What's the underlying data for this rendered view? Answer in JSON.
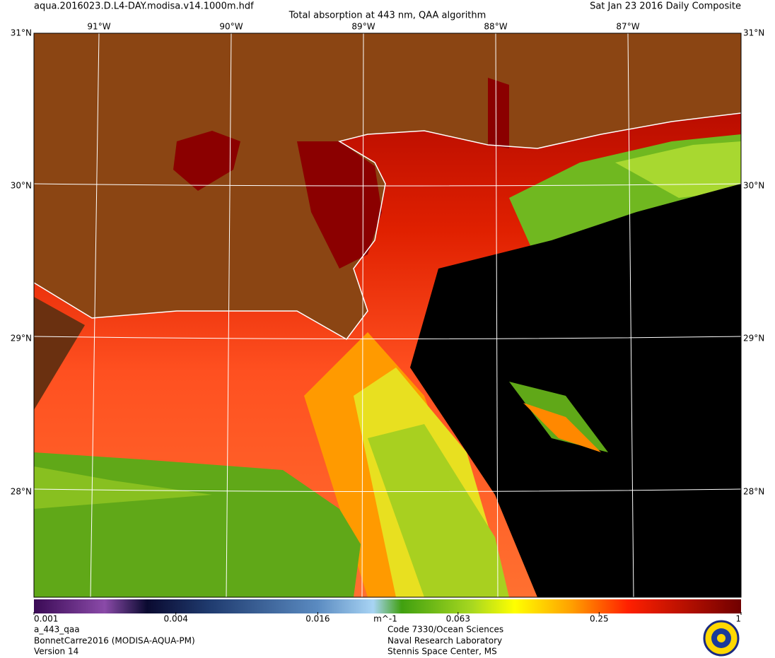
{
  "header": {
    "filename": "aqua.2016023.D.L4-DAY.modisa.v14.1000m.hdf",
    "title": "Total absorption at 443 nm, QAA algorithm",
    "date": "Sat Jan 23 2016 Daily Composite"
  },
  "map": {
    "longitude_labels": [
      "91°W",
      "90°W",
      "89°W",
      "88°W",
      "87°W"
    ],
    "latitude_labels": [
      "31°N",
      "30°N",
      "29°N",
      "28°N"
    ]
  },
  "colorbar": {
    "range": [
      0.001,
      1
    ],
    "scale": "log",
    "ticks": [
      0.001,
      0.004,
      0.016,
      0.063,
      0.25,
      1
    ],
    "unit": "m^-1"
  },
  "footer": {
    "left": [
      "a_443_qaa",
      "BonnetCarre2016 (MODISA-AQUA-PM)",
      "Version 14"
    ],
    "right": [
      "Code 7330/Ocean Sciences",
      "Naval Research Laboratory",
      "Stennis Space Center, MS"
    ]
  }
}
